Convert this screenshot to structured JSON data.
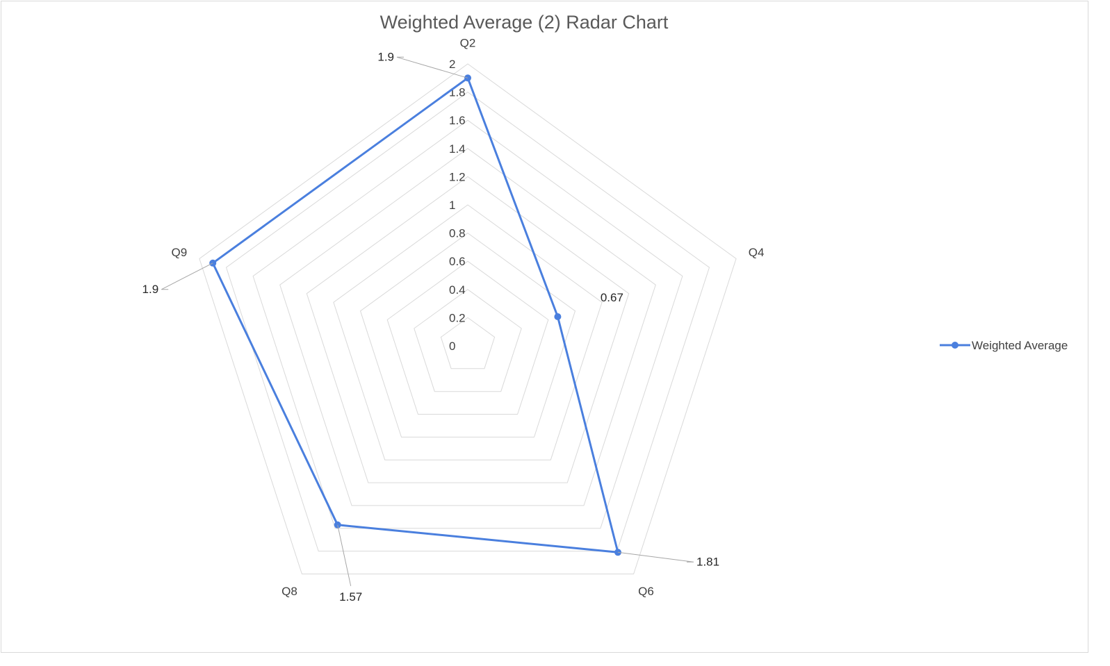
{
  "chart_data": {
    "type": "radar",
    "title": "Weighted Average (2) Radar Chart",
    "categories": [
      "Q2",
      "Q4",
      "Q6",
      "Q8",
      "Q9"
    ],
    "series": [
      {
        "name": "Weighted Average",
        "values": [
          1.9,
          0.67,
          1.81,
          1.57,
          1.9
        ],
        "color": "#4a7fde"
      }
    ],
    "data_labels": [
      "1.9",
      "0.67",
      "1.81",
      "1.57",
      "1.9"
    ],
    "radial_ticks": [
      "0",
      "0.2",
      "0.4",
      "0.6",
      "0.8",
      "1",
      "1.2",
      "1.4",
      "1.6",
      "1.8",
      "2"
    ],
    "rlim": [
      0,
      2
    ],
    "grid": true,
    "grid_color": "#d9d9d9",
    "legend_position": "right"
  }
}
